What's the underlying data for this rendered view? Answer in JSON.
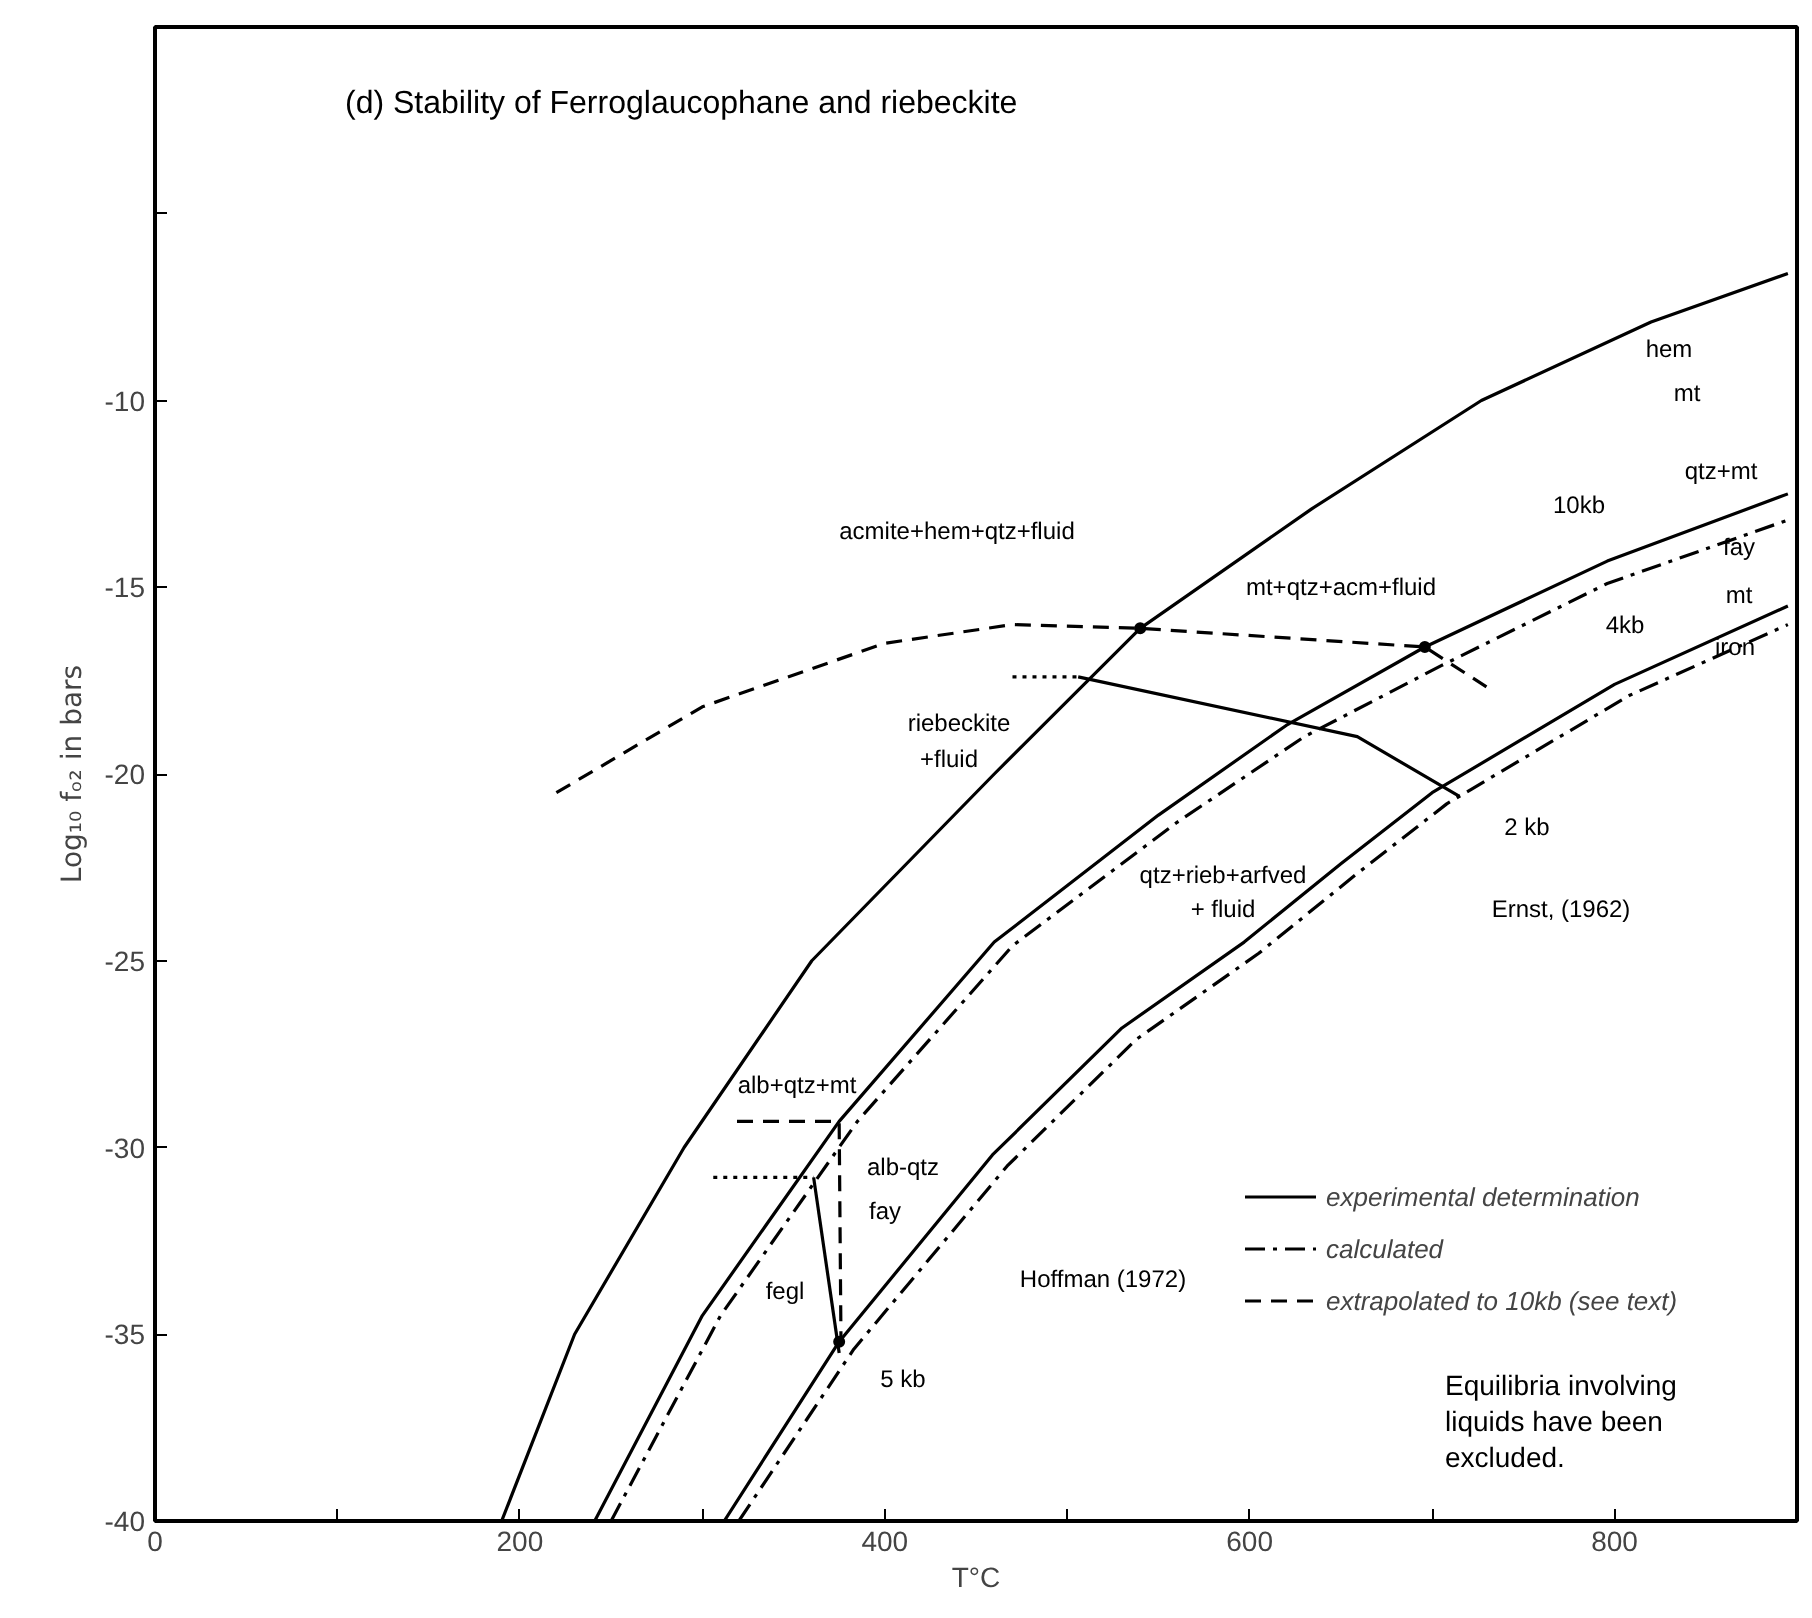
{
  "chart_data": {
    "type": "line",
    "title": "(d)  Stability of Ferroglaucophane and riebeckite",
    "xlabel": "T°C",
    "ylabel": "Log₁₀ fₒ₂ in bars",
    "xlim": [
      0,
      900
    ],
    "ylim": [
      -40,
      0
    ],
    "xticks": [
      0,
      {
        "value": 100,
        "label": null
      },
      200,
      {
        "value": 300,
        "label": null
      },
      400,
      {
        "value": 500,
        "label": null
      },
      600,
      {
        "value": 700,
        "label": null
      },
      800
    ],
    "yticks": [
      -40,
      -35,
      -30,
      -25,
      -20,
      -15,
      -10,
      {
        "value": -5,
        "label": null
      }
    ],
    "grid": false,
    "legend": "bottom right",
    "series": [
      {
        "name": "experimental determination",
        "color": "#000000",
        "line_style": "solid",
        "x": [
          190,
          230,
          290,
          360,
          460,
          540,
          634,
          727,
          820,
          895
        ],
        "values": [
          -40,
          -35,
          -30,
          -25,
          -20,
          -16.1,
          -12.9,
          -10,
          -7.9,
          -6.6
        ]
      },
      {
        "color": "#000000",
        "line_style": "solid",
        "x": [
          241,
          300,
          375,
          460,
          550,
          620,
          696,
          796,
          895
        ],
        "values": [
          -40,
          -34.5,
          -29.3,
          -24.5,
          -21.1,
          -18.7,
          -16.6,
          -14.3,
          -12.5
        ]
      },
      {
        "name": "calculated",
        "color": "#000000",
        "line_style": "dashdot",
        "x": [
          250,
          310,
          385,
          470,
          560,
          630,
          705,
          796,
          895
        ],
        "values": [
          -40,
          -34.5,
          -29.3,
          -24.6,
          -21.3,
          -19.0,
          -17.1,
          -14.9,
          -13.2
        ]
      },
      {
        "color": "#000000",
        "line_style": "solid",
        "x": [
          312,
          375,
          459,
          530,
          597,
          650,
          700,
          800,
          895
        ],
        "values": [
          -40,
          -35.2,
          -30.2,
          -26.8,
          -24.5,
          -22.4,
          -20.5,
          -17.6,
          -15.5
        ]
      },
      {
        "color": "#000000",
        "line_style": "dashdot",
        "x": [
          320,
          383,
          467,
          538,
          605,
          658,
          708,
          808,
          895
        ],
        "values": [
          -40,
          -35.4,
          -30.5,
          -27.1,
          -24.8,
          -22.7,
          -20.8,
          -17.9,
          -16
        ]
      },
      {
        "name": "extrapolated to 10kb (see text)",
        "color": "#000000",
        "line_style": "dashed",
        "x": [
          220,
          300,
          400,
          470,
          540,
          696,
          734
        ],
        "values": [
          -20.5,
          -18.2,
          -16.5,
          -16,
          -16.1,
          -16.6,
          -17.8
        ]
      },
      {
        "color": "#000000",
        "line_style": "solid",
        "x": [
          506,
          659,
          715
        ],
        "values": [
          -17.4,
          -19,
          -20.6
        ]
      },
      {
        "color": "#000000",
        "line_style": "dotted",
        "x": [
          470,
          506
        ],
        "values": [
          -17.4,
          -17.4
        ]
      },
      {
        "color": "#000000",
        "line_style": "dashed",
        "x": [
          319,
          375,
          376
        ],
        "values": [
          -29.3,
          -29.3,
          -35.2
        ]
      },
      {
        "color": "#000000",
        "line_style": "dotted",
        "x": [
          306,
          361
        ],
        "values": [
          -30.8,
          -30.8
        ]
      },
      {
        "color": "#000000",
        "line_style": "solid",
        "x": [
          361,
          375
        ],
        "values": [
          -30.8,
          -35.5
        ]
      },
      {
        "type": "scatter",
        "marker": "circle",
        "color": "#000000",
        "x": [
          540,
          696,
          375
        ],
        "values": [
          -16.1,
          -16.6,
          -35.2
        ]
      }
    ],
    "annotations": [
      "hem",
      "mt",
      "acmite+hem+qtz+fluid",
      "mt+qtz+acm+fluid",
      "10kb",
      "qtz+mt",
      "fay",
      "4kb",
      "mt",
      "iron",
      "riebeckite",
      "+fluid",
      "2 kb",
      "Ernst, (1962)",
      "qtz+rieb+arfved",
      "+ fluid",
      "alb+qtz+mt",
      "alb-qtz",
      "fay",
      "fegl",
      "Hoffman (1972)",
      "5 kb",
      "Equilibria involving",
      "liquids have been",
      "excluded."
    ]
  }
}
